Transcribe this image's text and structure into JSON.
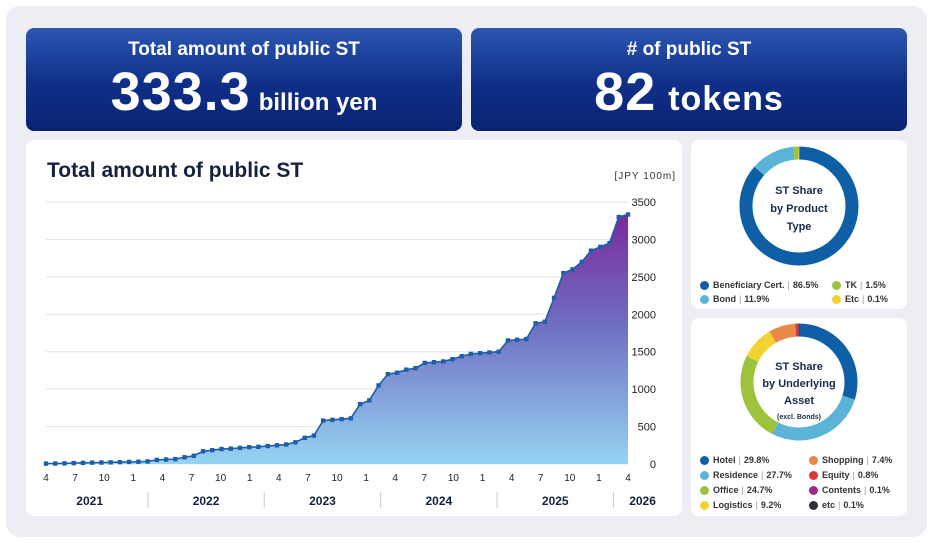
{
  "kpis": {
    "total": {
      "label": "Total amount of public ST",
      "value": "333.3",
      "unit": "billion yen"
    },
    "count": {
      "label": "# of public ST",
      "value": "82",
      "unit": "tokens"
    }
  },
  "chart_data": [
    {
      "type": "area",
      "title": "Total amount of public ST",
      "ylabel": "[JPY 100m]",
      "xlabel": "",
      "ylim": [
        0,
        3500
      ],
      "yticks": [
        0,
        500,
        1000,
        1500,
        2000,
        2500,
        3000,
        3500
      ],
      "x_month_labels": [
        "4",
        "7",
        "10",
        "1",
        "4",
        "7",
        "10",
        "1",
        "4",
        "7",
        "10",
        "1",
        "4",
        "7",
        "10",
        "1",
        "4",
        "7",
        "10",
        "1",
        "4"
      ],
      "year_labels": [
        "2021",
        "2022",
        "2023",
        "2024",
        "2025",
        "2026"
      ],
      "x_start": "2021-04",
      "x_end": "2026-04",
      "values": [
        5,
        6,
        8,
        12,
        15,
        18,
        20,
        22,
        25,
        28,
        30,
        35,
        55,
        60,
        65,
        90,
        110,
        170,
        185,
        200,
        205,
        215,
        225,
        230,
        240,
        250,
        260,
        290,
        350,
        380,
        580,
        590,
        600,
        610,
        800,
        850,
        1050,
        1200,
        1220,
        1260,
        1280,
        1350,
        1360,
        1370,
        1400,
        1440,
        1470,
        1480,
        1490,
        1500,
        1650,
        1660,
        1670,
        1880,
        1900,
        2220,
        2550,
        2600,
        2700,
        2850,
        2900,
        2950,
        3300,
        3333
      ]
    },
    {
      "type": "pie",
      "title": "ST Share by Product Type",
      "title_lines": [
        "ST Share",
        "by Product",
        "Type"
      ],
      "slices": [
        {
          "label": "Beneficiary Cert.",
          "value": 86.5,
          "display": "86.5%",
          "color": "#0e5fa6"
        },
        {
          "label": "Bond",
          "value": 11.9,
          "display": "11.9%",
          "color": "#5bb4d8"
        },
        {
          "label": "TK",
          "value": 1.5,
          "display": "1.5%",
          "color": "#9cc33b"
        },
        {
          "label": "Etc",
          "value": 0.1,
          "display": "0.1%",
          "color": "#f2d230"
        }
      ]
    },
    {
      "type": "pie",
      "title": "ST Share by Underlying Asset (excl. Bonds)",
      "title_lines": [
        "ST Share",
        "by Underlying",
        "Asset"
      ],
      "subtitle": "(excl. Bonds)",
      "slices": [
        {
          "label": "Hotel",
          "value": 29.8,
          "display": "29.8%",
          "color": "#0e5fa6"
        },
        {
          "label": "Residence",
          "value": 27.7,
          "display": "27.7%",
          "color": "#5bb4d8"
        },
        {
          "label": "Office",
          "value": 24.7,
          "display": "24.7%",
          "color": "#9cc33b"
        },
        {
          "label": "Logistics",
          "value": 9.2,
          "display": "9.2%",
          "color": "#f2d230"
        },
        {
          "label": "Shopping",
          "value": 7.4,
          "display": "7.4%",
          "color": "#e8894a"
        },
        {
          "label": "Equity",
          "value": 0.8,
          "display": "0.8%",
          "color": "#d9383a"
        },
        {
          "label": "Contents",
          "value": 0.1,
          "display": "0.1%",
          "color": "#9b2a8a"
        },
        {
          "label": "etc",
          "value": 0.1,
          "display": "0.1%",
          "color": "#2f2f3f"
        }
      ]
    }
  ]
}
